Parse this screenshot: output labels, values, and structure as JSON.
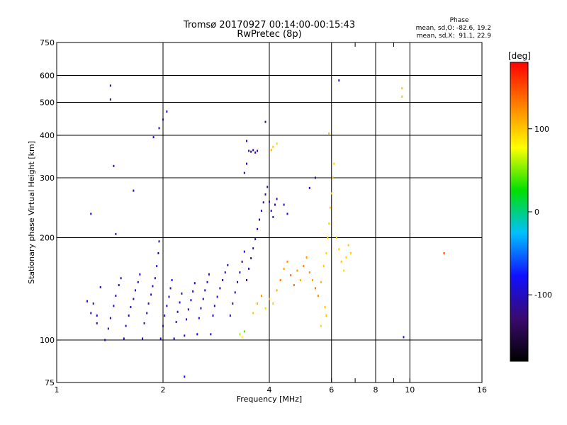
{
  "header": {
    "title": "Tromsø 20170927 00:14:00-00:15:43",
    "subtitle": "RwPretec (8p)"
  },
  "phase_stats": {
    "heading": "Phase",
    "line_o": "mean, sd,O: -82.6, 19.2",
    "line_x": "mean, sd,X:  91.1, 22.9"
  },
  "colorbar": {
    "unit": "[deg]",
    "ticks": [
      {
        "value": 100,
        "label": "100"
      },
      {
        "value": 0,
        "label": "0"
      },
      {
        "value": -100,
        "label": "-100"
      }
    ],
    "range": [
      -180,
      180
    ],
    "colors": [
      "#000000",
      "#3a0a6e",
      "#1010ff",
      "#00c0ff",
      "#00e000",
      "#ffff00",
      "#ff8000",
      "#ff0000"
    ]
  },
  "chart_data": {
    "type": "scatter",
    "title": "Tromsø 20170927 00:14:00-00:15:43",
    "subtitle": "RwPretec (8p)",
    "xlabel": "Frequency [MHz]",
    "ylabel": "Stationary phase Virtual Height [km]",
    "xscale": "log",
    "yscale": "log",
    "xlim": [
      1,
      16
    ],
    "ylim": [
      75,
      750
    ],
    "xticks": [
      {
        "value": 1,
        "label": "1"
      },
      {
        "value": 2,
        "label": "2"
      },
      {
        "value": 4,
        "label": "4"
      },
      {
        "value": 6,
        "label": "6"
      },
      {
        "value": 8,
        "label": "8"
      },
      {
        "value": 10,
        "label": "10"
      },
      {
        "value": 16,
        "label": "16"
      }
    ],
    "xminor": [
      7,
      9
    ],
    "yticks": [
      {
        "value": 75,
        "label": "75"
      },
      {
        "value": 100,
        "label": "100"
      },
      {
        "value": 200,
        "label": "200"
      },
      {
        "value": 300,
        "label": "300"
      },
      {
        "value": 400,
        "label": "400"
      },
      {
        "value": 500,
        "label": "500"
      },
      {
        "value": 600,
        "label": "600"
      },
      {
        "value": 750,
        "label": "750"
      }
    ],
    "grid_x": [
      2,
      4,
      6,
      8,
      10
    ],
    "grid_y": [
      100,
      200,
      300,
      400,
      500,
      600
    ],
    "color_encoding": "phase [deg]",
    "points": [
      [
        1.22,
        130,
        -100
      ],
      [
        1.25,
        120,
        -95
      ],
      [
        1.27,
        128,
        -105
      ],
      [
        1.3,
        112,
        -90
      ],
      [
        1.33,
        143,
        -100
      ],
      [
        1.37,
        100,
        -95
      ],
      [
        1.4,
        108,
        -110
      ],
      [
        1.42,
        116,
        -100
      ],
      [
        1.45,
        126,
        -90
      ],
      [
        1.47,
        135,
        -105
      ],
      [
        1.5,
        145,
        -95
      ],
      [
        1.52,
        152,
        -100
      ],
      [
        1.55,
        101,
        -100
      ],
      [
        1.57,
        110,
        -90
      ],
      [
        1.6,
        118,
        -110
      ],
      [
        1.62,
        125,
        -95
      ],
      [
        1.65,
        132,
        -100
      ],
      [
        1.67,
        140,
        -92
      ],
      [
        1.7,
        148,
        -104
      ],
      [
        1.72,
        156,
        -96
      ],
      [
        1.75,
        101,
        -100
      ],
      [
        1.77,
        112,
        -88
      ],
      [
        1.8,
        120,
        -108
      ],
      [
        1.82,
        128,
        -94
      ],
      [
        1.85,
        136,
        -100
      ],
      [
        1.87,
        144,
        -90
      ],
      [
        1.9,
        152,
        -102
      ],
      [
        1.92,
        165,
        -98
      ],
      [
        1.94,
        180,
        -110
      ],
      [
        1.95,
        195,
        -100
      ],
      [
        1.97,
        101,
        -95
      ],
      [
        2.0,
        110,
        -100
      ],
      [
        2.02,
        118,
        -92
      ],
      [
        2.05,
        126,
        -106
      ],
      [
        2.08,
        134,
        -96
      ],
      [
        2.1,
        142,
        -100
      ],
      [
        2.12,
        150,
        -90
      ],
      [
        2.15,
        101,
        -104
      ],
      [
        2.18,
        113,
        -98
      ],
      [
        2.2,
        121,
        -100
      ],
      [
        2.23,
        129,
        -92
      ],
      [
        2.26,
        137,
        -108
      ],
      [
        2.3,
        103,
        -100
      ],
      [
        2.33,
        115,
        -94
      ],
      [
        2.36,
        123,
        -100
      ],
      [
        2.4,
        131,
        -90
      ],
      [
        2.43,
        139,
        -106
      ],
      [
        2.46,
        147,
        -98
      ],
      [
        2.5,
        104,
        -100
      ],
      [
        2.53,
        116,
        -92
      ],
      [
        2.56,
        124,
        -104
      ],
      [
        2.6,
        132,
        -96
      ],
      [
        2.63,
        140,
        -100
      ],
      [
        2.67,
        148,
        -90
      ],
      [
        2.7,
        156,
        -108
      ],
      [
        2.73,
        104,
        -100
      ],
      [
        2.77,
        118,
        -94
      ],
      [
        2.8,
        126,
        -100
      ],
      [
        2.85,
        134,
        -90
      ],
      [
        2.9,
        142,
        -106
      ],
      [
        2.95,
        150,
        -98
      ],
      [
        3.0,
        158,
        -100
      ],
      [
        3.05,
        166,
        -92
      ],
      [
        3.1,
        118,
        -110
      ],
      [
        3.15,
        128,
        -100
      ],
      [
        3.2,
        138,
        -95
      ],
      [
        3.25,
        148,
        -120
      ],
      [
        3.3,
        158,
        -100
      ],
      [
        3.35,
        170,
        -125
      ],
      [
        3.4,
        182,
        -100
      ],
      [
        3.45,
        150,
        -130
      ],
      [
        3.5,
        162,
        -110
      ],
      [
        3.55,
        174,
        -120
      ],
      [
        3.6,
        186,
        -100
      ],
      [
        3.65,
        198,
        -115
      ],
      [
        3.7,
        212,
        -100
      ],
      [
        3.75,
        226,
        -125
      ],
      [
        3.8,
        240,
        -110
      ],
      [
        3.85,
        254,
        -120
      ],
      [
        3.9,
        268,
        -100
      ],
      [
        3.95,
        282,
        -115
      ],
      [
        4.0,
        255,
        -100
      ],
      [
        4.05,
        240,
        -110
      ],
      [
        4.1,
        230,
        -100
      ],
      [
        4.15,
        250,
        -105
      ],
      [
        4.2,
        260,
        -95
      ],
      [
        3.5,
        360,
        -115
      ],
      [
        3.55,
        358,
        -110
      ],
      [
        3.6,
        362,
        -120
      ],
      [
        3.65,
        356,
        -105
      ],
      [
        3.7,
        360,
        -112
      ],
      [
        3.45,
        385,
        -100
      ],
      [
        3.9,
        438,
        -115
      ],
      [
        3.4,
        310,
        -110
      ],
      [
        3.45,
        330,
        -100
      ],
      [
        1.42,
        560,
        -110
      ],
      [
        1.42,
        510,
        -105
      ],
      [
        1.88,
        395,
        -100
      ],
      [
        1.95,
        420,
        -95
      ],
      [
        2.0,
        445,
        -105
      ],
      [
        2.05,
        470,
        -100
      ],
      [
        1.45,
        325,
        -100
      ],
      [
        1.65,
        275,
        -105
      ],
      [
        1.47,
        205,
        -100
      ],
      [
        1.25,
        235,
        -90
      ],
      [
        2.3,
        78,
        -80
      ],
      [
        1.3,
        118,
        -100
      ],
      [
        3.3,
        104,
        60
      ],
      [
        3.35,
        102,
        80
      ],
      [
        3.4,
        106,
        40
      ],
      [
        3.6,
        120,
        100
      ],
      [
        3.7,
        128,
        110
      ],
      [
        3.8,
        135,
        120
      ],
      [
        3.9,
        124,
        95
      ],
      [
        4.0,
        132,
        105
      ],
      [
        4.1,
        128,
        100
      ],
      [
        4.2,
        140,
        110
      ],
      [
        4.3,
        150,
        130
      ],
      [
        4.4,
        162,
        115
      ],
      [
        4.5,
        170,
        125
      ],
      [
        4.6,
        155,
        140
      ],
      [
        4.7,
        145,
        135
      ],
      [
        4.8,
        160,
        120
      ],
      [
        4.9,
        150,
        110
      ],
      [
        5.0,
        165,
        130
      ],
      [
        5.1,
        175,
        120
      ],
      [
        5.2,
        158,
        125
      ],
      [
        5.3,
        150,
        115
      ],
      [
        5.4,
        142,
        135
      ],
      [
        5.5,
        135,
        125
      ],
      [
        5.6,
        148,
        110
      ],
      [
        5.7,
        165,
        100
      ],
      [
        5.8,
        180,
        95
      ],
      [
        5.85,
        200,
        100
      ],
      [
        5.9,
        220,
        95
      ],
      [
        5.95,
        245,
        100
      ],
      [
        6.0,
        270,
        95
      ],
      [
        6.05,
        300,
        100
      ],
      [
        6.1,
        330,
        95
      ],
      [
        6.2,
        200,
        100
      ],
      [
        6.3,
        185,
        95
      ],
      [
        6.4,
        170,
        100
      ],
      [
        6.5,
        160,
        90
      ],
      [
        6.6,
        175,
        95
      ],
      [
        6.7,
        190,
        100
      ],
      [
        6.8,
        180,
        95
      ],
      [
        5.75,
        125,
        100
      ],
      [
        5.8,
        118,
        105
      ],
      [
        5.6,
        110,
        95
      ],
      [
        4.1,
        370,
        100
      ],
      [
        4.2,
        378,
        95
      ],
      [
        4.05,
        362,
        110
      ],
      [
        5.9,
        405,
        100
      ],
      [
        6.3,
        580,
        -110
      ],
      [
        9.5,
        550,
        100
      ],
      [
        9.5,
        520,
        105
      ],
      [
        12.5,
        180,
        150
      ],
      [
        9.6,
        102,
        -100
      ],
      [
        5.4,
        300,
        -120
      ],
      [
        5.2,
        280,
        -100
      ],
      [
        4.4,
        250,
        -110
      ],
      [
        4.5,
        235,
        -100
      ]
    ]
  }
}
